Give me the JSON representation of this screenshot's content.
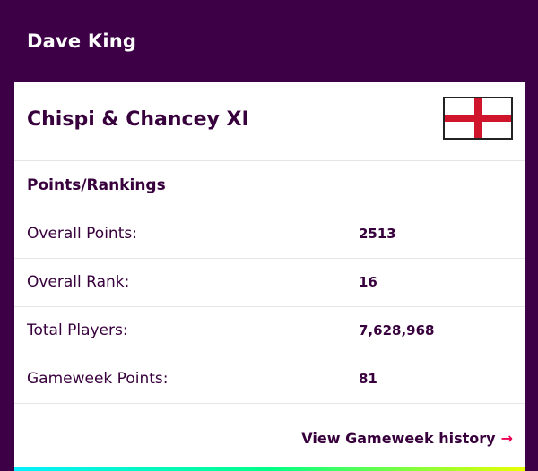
{
  "manager": {
    "name": "Dave King"
  },
  "team": {
    "name": "Chispi & Chancey XI",
    "flag_icon": "england-flag-icon"
  },
  "section": {
    "title": "Points/Rankings"
  },
  "stats": [
    {
      "label": "Overall Points:",
      "value": "2513"
    },
    {
      "label": "Overall Rank:",
      "value": "16"
    },
    {
      "label": "Total Players:",
      "value": "7,628,968"
    },
    {
      "label": "Gameweek Points:",
      "value": "81"
    }
  ],
  "link": {
    "label": "View Gameweek history",
    "arrow": "→"
  },
  "colors": {
    "header_bg": "#3d0046",
    "text": "#37003c",
    "accent": "#e90052",
    "flag_red": "#cf142b"
  }
}
